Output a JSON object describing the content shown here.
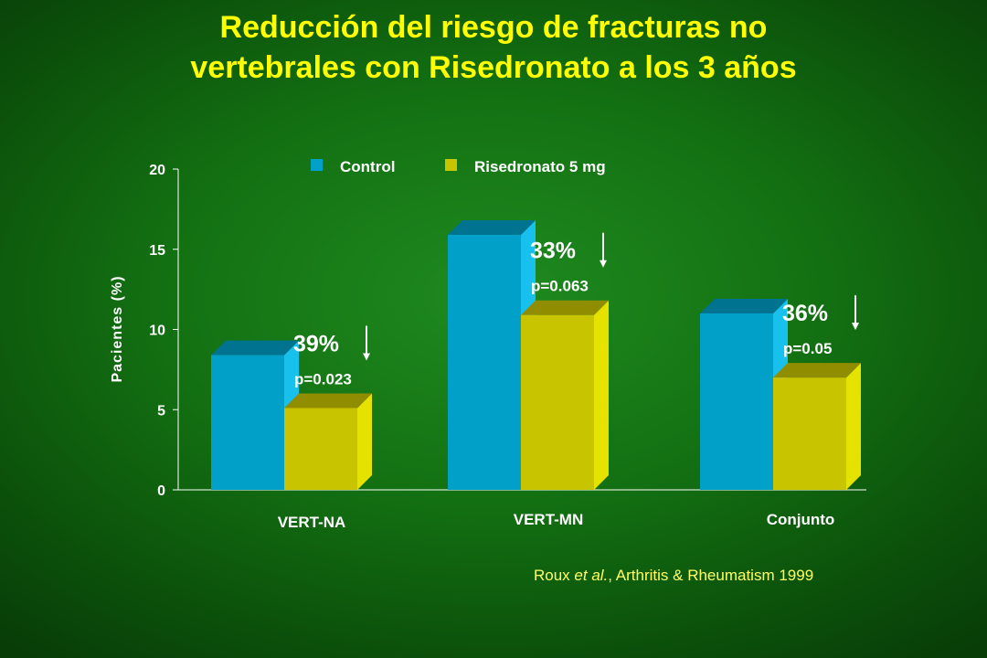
{
  "title_line1": "Reducción del riesgo de fracturas no",
  "title_line2": "vertebrales con Risedronato a los 3 años",
  "citation": {
    "author": "Roux",
    "etal": "et al.",
    "source": ", Arthritis & Rheumatism 1999"
  },
  "colors": {
    "control": "#00a0c8",
    "risedronato": "#c8c400",
    "text_white": "#ffffff",
    "title_yellow": "#ffff00"
  },
  "chart_data": {
    "type": "bar",
    "ylabel": "Pacientes (%)",
    "ylim": [
      0,
      20
    ],
    "yticks": [
      "0",
      "5",
      "10",
      "15",
      "20"
    ],
    "categories": [
      "VERT-NA",
      "VERT-MN",
      "Conjunto"
    ],
    "series": [
      {
        "name": "Control",
        "values": [
          8.4,
          15.9,
          11.0
        ]
      },
      {
        "name": "Risedronato 5 mg",
        "values": [
          5.1,
          10.9,
          7.0
        ]
      }
    ],
    "annotations": [
      {
        "reduction": "39%",
        "pvalue": "p=0.023"
      },
      {
        "reduction": "33%",
        "pvalue": "p=0.063"
      },
      {
        "reduction": "36%",
        "pvalue": "p=0.05"
      }
    ],
    "legend_position": "top"
  }
}
